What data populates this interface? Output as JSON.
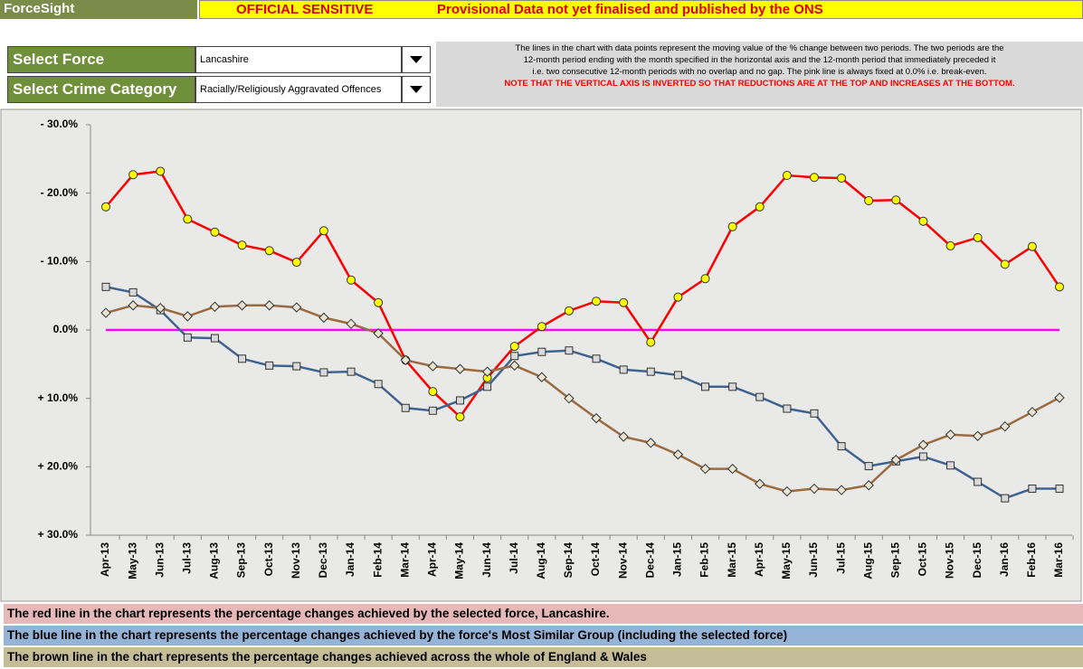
{
  "header": {
    "app": "ForceSight",
    "classification": "OFFICIAL SENSITIVE",
    "notice": "Provisional Data not yet finalised and published by the ONS"
  },
  "filters": [
    {
      "label": "Select Force",
      "value": "Lancashire"
    },
    {
      "label": "Select Crime Category",
      "value": "Racially/Religiously Aggravated Offences"
    }
  ],
  "note": {
    "lines": [
      "The lines in the chart with data points represent the moving value of the % change between two periods.  The two periods are the",
      "12-month period ending with the month specified in the horizontal axis and the 12-month period that immediately preceded it",
      "i.e. two consecutive 12-month periods with no overlap and no gap.  The pink line is always fixed at 0.0% i.e. break-even."
    ],
    "warning": "NOTE THAT THE VERTICAL AXIS IS INVERTED SO THAT REDUCTIONS ARE AT THE TOP AND INCREASES AT THE BOTTOM."
  },
  "chart_data": {
    "type": "line",
    "inverted": true,
    "grid": false,
    "ylim": [
      -30,
      30
    ],
    "yticks": [
      {
        "value": -30,
        "label": "- 30.0%"
      },
      {
        "value": -20,
        "label": "- 20.0%"
      },
      {
        "value": -10,
        "label": "- 10.0%"
      },
      {
        "value": 0,
        "label": "0.0%"
      },
      {
        "value": 10,
        "label": "+ 10.0%"
      },
      {
        "value": 20,
        "label": "+ 20.0%"
      },
      {
        "value": 30,
        "label": "+ 30.0%"
      }
    ],
    "baseline": {
      "value": 0,
      "color": "#ff00ff"
    },
    "categories": [
      "Apr-13",
      "May-13",
      "Jun-13",
      "Jul-13",
      "Aug-13",
      "Sep-13",
      "Oct-13",
      "Nov-13",
      "Dec-13",
      "Jan-14",
      "Feb-14",
      "Mar-14",
      "Apr-14",
      "May-14",
      "Jun-14",
      "Jul-14",
      "Aug-14",
      "Sep-14",
      "Oct-14",
      "Nov-14",
      "Dec-14",
      "Jan-15",
      "Feb-15",
      "Mar-15",
      "Apr-15",
      "May-15",
      "Jun-15",
      "Jul-15",
      "Aug-15",
      "Sep-15",
      "Oct-15",
      "Nov-15",
      "Dec-15",
      "Jan-16",
      "Feb-16",
      "Mar-16"
    ],
    "series": [
      {
        "color": "#ff0000",
        "marker": "circle",
        "marker_fill": "#ffff00",
        "values": [
          -18.0,
          -22.7,
          -23.2,
          -16.2,
          -14.3,
          -12.4,
          -11.6,
          -9.9,
          -14.5,
          -7.3,
          -4.0,
          4.4,
          9.0,
          12.7,
          7.0,
          2.4,
          -0.5,
          -2.8,
          -4.2,
          -4.0,
          1.8,
          -4.8,
          -7.5,
          -15.1,
          -18.0,
          -22.6,
          -22.3,
          -22.2,
          -18.9,
          -19.0,
          -15.9,
          -12.3,
          -13.5,
          -9.6,
          -12.2,
          -6.3
        ]
      },
      {
        "color": "#3f6390",
        "marker": "square",
        "marker_fill": "#d9d9d9",
        "values": [
          -6.3,
          -5.5,
          -2.9,
          1.1,
          1.2,
          4.2,
          5.2,
          5.3,
          6.2,
          6.1,
          7.9,
          11.4,
          11.8,
          10.3,
          8.3,
          3.8,
          3.2,
          3.0,
          4.2,
          5.8,
          6.1,
          6.6,
          8.3,
          8.3,
          9.8,
          11.5,
          12.2,
          17.0,
          19.9,
          19.2,
          18.5,
          19.8,
          22.2,
          24.6,
          23.2,
          23.2
        ]
      },
      {
        "color": "#9b6a3e",
        "marker": "diamond",
        "marker_fill": "#e8e4d0",
        "values": [
          -2.5,
          -3.6,
          -3.2,
          -2.0,
          -3.4,
          -3.6,
          -3.6,
          -3.3,
          -1.8,
          -0.9,
          0.5,
          4.4,
          5.3,
          5.7,
          6.1,
          5.2,
          6.9,
          10.0,
          12.9,
          15.6,
          16.5,
          18.2,
          20.3,
          20.3,
          22.5,
          23.6,
          23.2,
          23.4,
          22.7,
          19.0,
          16.8,
          15.3,
          15.5,
          14.1,
          12.0,
          9.9
        ]
      }
    ]
  },
  "legend_lines": [
    {
      "text": "The red line in the chart represents the percentage changes achieved by the selected force, Lancashire.",
      "color": "#e6b8b7"
    },
    {
      "text": "The blue line in the chart represents the percentage changes achieved by the force's Most Similar Group (including the selected force)",
      "color": "#95b3d7"
    },
    {
      "text": "The brown line in the chart represents the percentage changes achieved across the whole of England & Wales",
      "color": "#c4bd97"
    }
  ]
}
